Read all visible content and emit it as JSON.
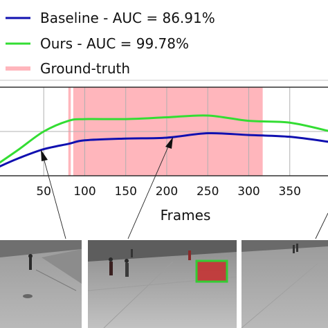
{
  "chart_data": {
    "type": "line",
    "xlabel": "Frames",
    "ylabel": "",
    "xlim": [
      -5,
      400
    ],
    "ylim": [
      0,
      1
    ],
    "xticks": [
      50,
      100,
      150,
      200,
      250,
      300,
      350
    ],
    "grid": true,
    "legend_position": "top",
    "series": [
      {
        "name": "Baseline - AUC = 86.91%",
        "color": "#1010b0",
        "x": [
          -5,
          20,
          50,
          80,
          100,
          150,
          200,
          250,
          300,
          350,
          400
        ],
        "y": [
          0.1,
          0.2,
          0.3,
          0.36,
          0.4,
          0.42,
          0.43,
          0.48,
          0.46,
          0.44,
          0.38
        ]
      },
      {
        "name": "Ours - AUC = 99.78%",
        "color": "#33dd33",
        "x": [
          -5,
          20,
          50,
          80,
          100,
          150,
          200,
          250,
          300,
          350,
          400
        ],
        "y": [
          0.14,
          0.3,
          0.5,
          0.62,
          0.64,
          0.64,
          0.66,
          0.68,
          0.62,
          0.6,
          0.5
        ]
      }
    ],
    "ground_truth": {
      "name": "Ground-truth",
      "color": "#ffb6bc",
      "ranges": [
        [
          80,
          83
        ],
        [
          86,
          317
        ]
      ]
    }
  },
  "colors": {
    "baseline": "#1010b0",
    "ours": "#33dd33",
    "ground_truth": "#ffb6bc"
  },
  "frames": [
    {
      "name": "frame-1"
    },
    {
      "name": "frame-2",
      "detection_box_color": "#33cc33"
    },
    {
      "name": "frame-3"
    }
  ]
}
